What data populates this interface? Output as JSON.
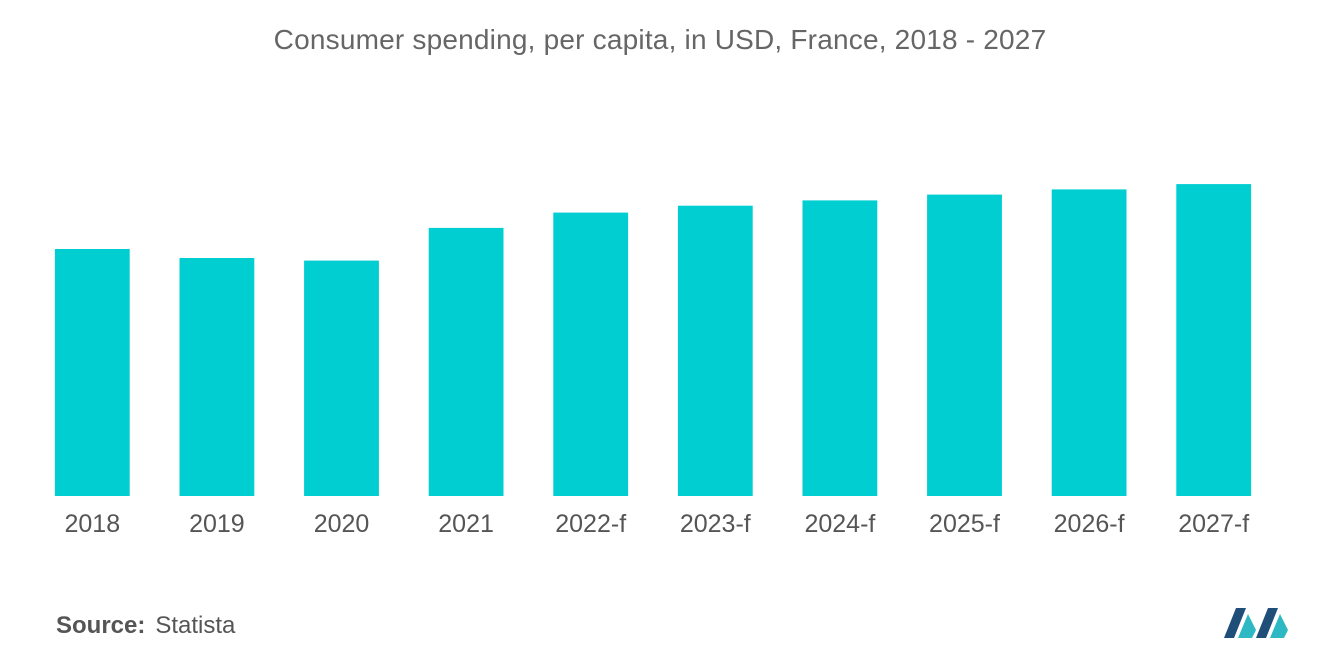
{
  "header": {
    "title": "Consumer spending, per capita, in USD, France, 2018 - 2027"
  },
  "footer": {
    "source_label": "Source:",
    "source_value": "Statista"
  },
  "colors": {
    "bar": "#00CED1",
    "logo_dark": "#1f4e79",
    "logo_light": "#2eb8c4"
  },
  "chart_data": {
    "type": "bar",
    "title": "Consumer spending, per capita, in USD, France, 2018 - 2027",
    "xlabel": "",
    "ylabel": "",
    "categories": [
      "2018",
      "2019",
      "2020",
      "2021",
      "2022-f",
      "2023-f",
      "2024-f",
      "2025-f",
      "2026-f",
      "2027-f"
    ],
    "values": [
      23400,
      22550,
      22300,
      25400,
      26850,
      27500,
      28000,
      28550,
      29050,
      29550
    ],
    "ylim": [
      0,
      36000
    ],
    "grid": false,
    "legend": "none"
  }
}
